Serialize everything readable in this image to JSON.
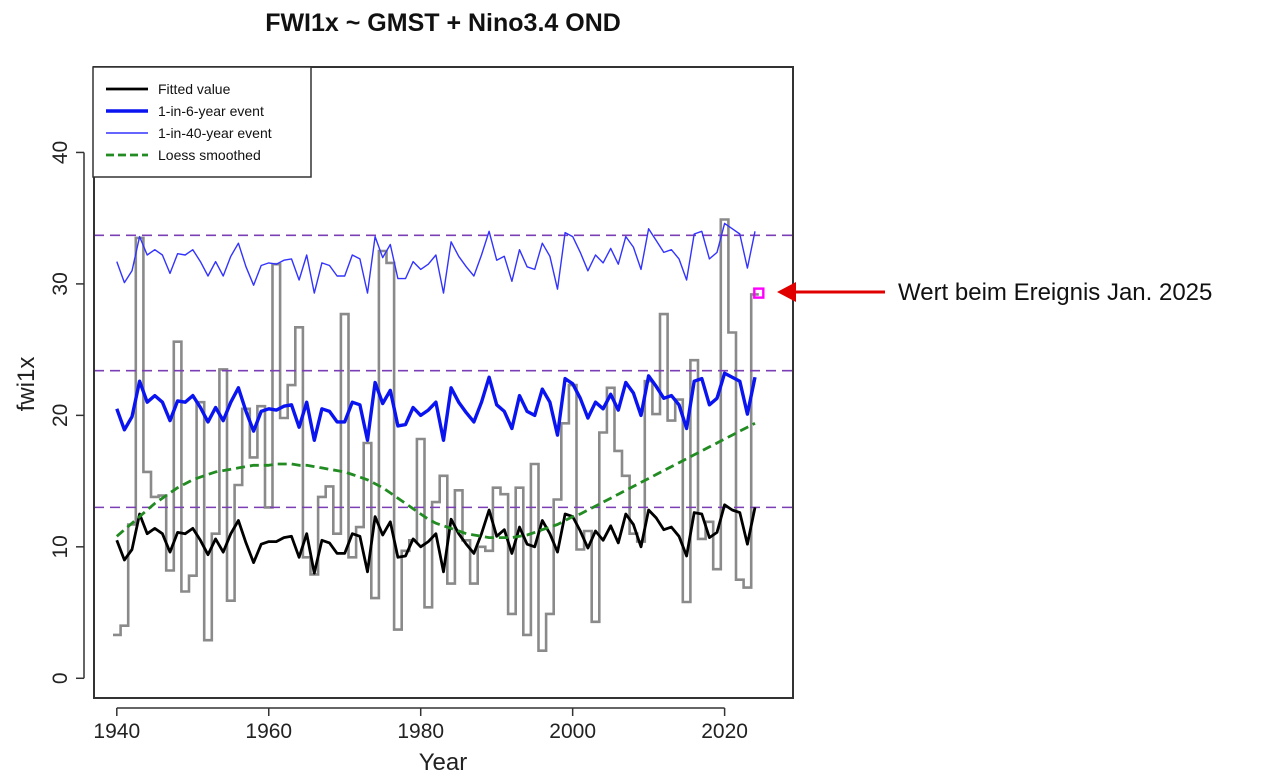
{
  "chart_data": {
    "type": "line",
    "title": "FWI1x ~ GMST + Nino3.4 OND",
    "xlabel": "Year",
    "ylabel": "fwi1x",
    "xlim": [
      1937,
      2029
    ],
    "ylim": [
      -1.5,
      46.5
    ],
    "x_ticks": [
      1940,
      1960,
      1980,
      2000,
      2020
    ],
    "y_ticks": [
      0,
      10,
      20,
      30,
      40
    ],
    "x": [
      1940,
      1941,
      1942,
      1943,
      1944,
      1945,
      1946,
      1947,
      1948,
      1949,
      1950,
      1951,
      1952,
      1953,
      1954,
      1955,
      1956,
      1957,
      1958,
      1959,
      1960,
      1961,
      1962,
      1963,
      1964,
      1965,
      1966,
      1967,
      1968,
      1969,
      1970,
      1971,
      1972,
      1973,
      1974,
      1975,
      1976,
      1977,
      1978,
      1979,
      1980,
      1981,
      1982,
      1983,
      1984,
      1985,
      1986,
      1987,
      1988,
      1989,
      1990,
      1991,
      1992,
      1993,
      1994,
      1995,
      1996,
      1997,
      1998,
      1999,
      2000,
      2001,
      2002,
      2003,
      2004,
      2005,
      2006,
      2007,
      2008,
      2009,
      2010,
      2011,
      2012,
      2013,
      2014,
      2015,
      2016,
      2017,
      2018,
      2019,
      2020,
      2021,
      2022,
      2023,
      2024,
      2025
    ],
    "observed": [
      3.3,
      4,
      11.7,
      33.5,
      15.7,
      13.8,
      13.9,
      8.2,
      25.6,
      6.6,
      7.8,
      21,
      2.9,
      11,
      23.5,
      5.9,
      14.7,
      20.5,
      16.8,
      20.7,
      13,
      31.5,
      19.8,
      22.3,
      26.7,
      9.2,
      7.9,
      13.8,
      14.6,
      11,
      27.7,
      9.2,
      11.5,
      17.9,
      6.1,
      32.5,
      31.6,
      3.7,
      9.7,
      10.5,
      18.2,
      5.4,
      13.4,
      15.4,
      7.2,
      14.3,
      10.5,
      7.2,
      10,
      9.7,
      14.5,
      14,
      4.9,
      14.5,
      3.3,
      16.3,
      2.1,
      4.9,
      13.6,
      19.4,
      22.3,
      9.8,
      11.2,
      4.3,
      18.7,
      22.1,
      17.3,
      15.4,
      11,
      10.4,
      22.6,
      20.1,
      27.7,
      19.6,
      21.2,
      5.8,
      24.2,
      10.6,
      11.9,
      8.3,
      34.9,
      26.3,
      7.5,
      6.9,
      29.2
    ],
    "observed_label": "",
    "series": [
      {
        "name": "Fitted value",
        "color": "#000000",
        "values": [
          10.5,
          9.0,
          9.8,
          12.5,
          11.0,
          11.4,
          11.0,
          9.6,
          11.1,
          11.0,
          11.4,
          10.5,
          9.4,
          10.6,
          9.6,
          11.0,
          12.0,
          10.3,
          8.8,
          10.2,
          10.4,
          10.4,
          10.7,
          10.8,
          9.2,
          11.0,
          8.0,
          10.5,
          10.3,
          9.5,
          9.5,
          11.0,
          10.8,
          8.1,
          12.3,
          10.9,
          11.9,
          9.2,
          9.3,
          10.6,
          10.0,
          10.4,
          11.0,
          8.1,
          12.1,
          11.0,
          10.2,
          9.5,
          11.0,
          12.8,
          10.8,
          11.3,
          9.5,
          11.5,
          10.2,
          10.0,
          12.0,
          11.0,
          9.6,
          12.5,
          12.3,
          11.2,
          9.9,
          11.2,
          10.5,
          11.6,
          10.3,
          12.5,
          11.7,
          10.0,
          12.8,
          12.2,
          11.3,
          11.5,
          10.8,
          9.3,
          12.6,
          12.5,
          10.7,
          11.1,
          13.2,
          12.8,
          12.6,
          10.2,
          13.0,
          null
        ]
      },
      {
        "name": "1-in-6-year event",
        "color": "#0a14f0",
        "values": [
          20.5,
          18.9,
          19.9,
          22.6,
          21.0,
          21.5,
          21.0,
          19.6,
          21.1,
          21.0,
          21.5,
          20.6,
          19.5,
          20.6,
          19.6,
          21.0,
          22.1,
          20.3,
          18.8,
          20.3,
          20.5,
          20.4,
          20.7,
          20.8,
          19.1,
          21.0,
          18.1,
          20.5,
          20.3,
          19.5,
          19.5,
          21.0,
          20.8,
          18.1,
          22.5,
          20.9,
          21.9,
          19.2,
          19.3,
          20.6,
          20.0,
          20.4,
          21.0,
          18.1,
          22.1,
          21.0,
          20.2,
          19.5,
          21.0,
          22.9,
          20.8,
          20.3,
          19.0,
          21.5,
          20.3,
          20.0,
          22.0,
          21.0,
          18.5,
          22.8,
          22.4,
          21.3,
          19.8,
          21.0,
          20.5,
          21.6,
          20.4,
          22.5,
          21.7,
          20.0,
          23.0,
          22.2,
          21.3,
          21.5,
          20.8,
          19.0,
          22.6,
          22.8,
          20.8,
          21.3,
          23.2,
          22.9,
          22.6,
          20.1,
          22.9,
          null
        ]
      },
      {
        "name": "1-in-40-year event",
        "color": "#3333ff",
        "values": [
          31.7,
          30.1,
          31.0,
          33.6,
          32.2,
          32.6,
          32.2,
          30.8,
          32.3,
          32.2,
          32.6,
          31.7,
          30.6,
          31.7,
          30.6,
          32.1,
          33.1,
          31.3,
          29.9,
          31.4,
          31.6,
          31.5,
          31.8,
          31.9,
          30.3,
          32.2,
          29.3,
          31.6,
          31.4,
          30.6,
          30.6,
          32.2,
          31.9,
          29.3,
          33.6,
          32.0,
          33.0,
          30.4,
          30.4,
          31.7,
          31.1,
          31.5,
          32.2,
          29.3,
          33.2,
          32.1,
          31.3,
          30.6,
          32.2,
          34.0,
          31.8,
          32.1,
          30.2,
          32.6,
          31.3,
          31.1,
          33.1,
          32.1,
          29.6,
          33.9,
          33.6,
          32.4,
          31.0,
          32.2,
          31.6,
          32.7,
          31.5,
          33.6,
          32.8,
          31.1,
          34.2,
          33.3,
          32.4,
          32.6,
          31.9,
          30.3,
          33.8,
          34.0,
          31.9,
          32.4,
          34.6,
          34.2,
          33.8,
          31.2,
          34.0,
          null
        ]
      },
      {
        "name": "Loess smoothed",
        "color": "#228b22",
        "dashed": true,
        "values": [
          10.8,
          11.3,
          11.8,
          12.3,
          12.8,
          13.3,
          13.7,
          14.1,
          14.5,
          14.8,
          15.1,
          15.3,
          15.5,
          15.7,
          15.8,
          15.9,
          16.0,
          16.1,
          16.2,
          16.2,
          16.2,
          16.3,
          16.3,
          16.3,
          16.2,
          16.2,
          16.1,
          16.0,
          15.9,
          15.8,
          15.7,
          15.5,
          15.3,
          15.1,
          14.8,
          14.5,
          14.1,
          13.7,
          13.3,
          12.9,
          12.5,
          12.1,
          11.8,
          11.6,
          11.4,
          11.2,
          11.0,
          10.9,
          10.8,
          10.7,
          10.7,
          10.7,
          10.7,
          10.8,
          10.9,
          11.1,
          11.3,
          11.5,
          11.7,
          12.0,
          12.3,
          12.5,
          12.8,
          13.1,
          13.4,
          13.7,
          14.0,
          14.3,
          14.6,
          14.9,
          15.2,
          15.5,
          15.8,
          16.1,
          16.4,
          16.7,
          17.0,
          17.3,
          17.6,
          17.9,
          18.2,
          18.5,
          18.8,
          19.1,
          19.4,
          null
        ]
      }
    ],
    "horizontal_lines": [
      13,
      23.4,
      33.7
    ],
    "horizontal_line_color": "#7b3fb5",
    "event_marker": {
      "x": 2024.5,
      "y": 29.3,
      "color": "#ff00ff"
    },
    "legend_position": "top-left",
    "grid": false
  },
  "annotation": {
    "text": "Wert beim Ereignis Jan. 2025",
    "arrow_color": "#e00000"
  }
}
